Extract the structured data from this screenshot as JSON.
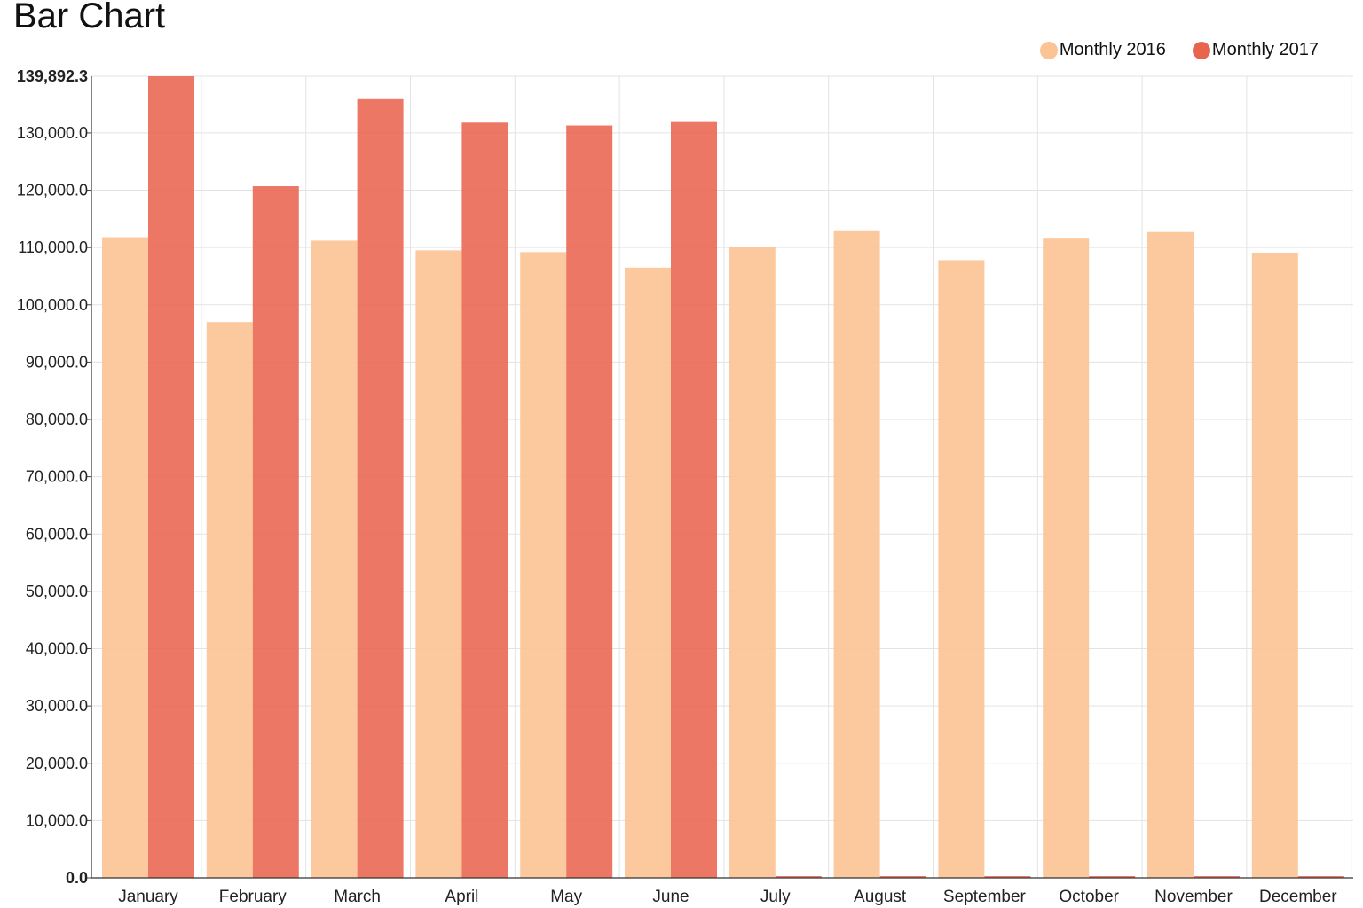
{
  "chart_data": {
    "type": "bar",
    "title": "Bar Chart",
    "xlabel": "",
    "ylabel": "",
    "ylim": [
      0,
      139892.3
    ],
    "y_ticks": [
      0,
      10000,
      20000,
      30000,
      40000,
      50000,
      60000,
      70000,
      80000,
      90000,
      100000,
      110000,
      120000,
      130000
    ],
    "y_tick_labels": [
      "0.0",
      "10,000.0",
      "20,000.0",
      "30,000.0",
      "40,000.0",
      "50,000.0",
      "60,000.0",
      "70,000.0",
      "80,000.0",
      "90,000.0",
      "100,000.0",
      "110,000.0",
      "120,000.0",
      "130,000.0"
    ],
    "y_max_label": "139,892.3",
    "categories": [
      "January",
      "February",
      "March",
      "April",
      "May",
      "June",
      "July",
      "August",
      "September",
      "October",
      "November",
      "December"
    ],
    "series": [
      {
        "name": "Monthly 2016",
        "color": "#fcc395",
        "values": [
          111800,
          97000,
          111200,
          109500,
          109200,
          106500,
          110100,
          113000,
          107800,
          111700,
          112700,
          109100
        ]
      },
      {
        "name": "Monthly 2017",
        "color": "#e8644e",
        "values": [
          139892.3,
          120700,
          135900,
          131800,
          131300,
          131900,
          0,
          0,
          0,
          0,
          0,
          0
        ]
      }
    ],
    "grid": true,
    "legend_position": "top-right"
  }
}
